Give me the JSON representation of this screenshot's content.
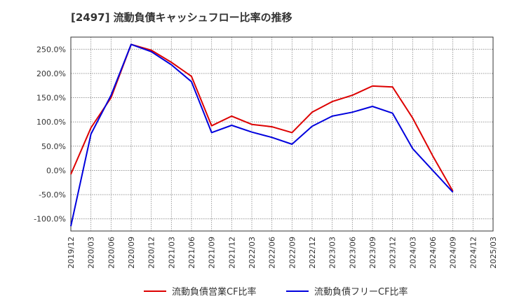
{
  "chart_data": {
    "type": "line",
    "title": "[2497]  流動負債キャッシュフロー比率の推移",
    "xlabel": "",
    "ylabel": "",
    "ylim": [
      -125,
      275
    ],
    "yticks": [
      -100,
      -50,
      0,
      50,
      100,
      150,
      200,
      250
    ],
    "ytick_labels": [
      "-100.0%",
      "-50.0%",
      "0.0%",
      "50.0%",
      "100.0%",
      "150.0%",
      "200.0%",
      "250.0%"
    ],
    "x": [
      "2019/12",
      "2020/03",
      "2020/06",
      "2020/09",
      "2020/12",
      "2021/03",
      "2021/06",
      "2021/09",
      "2021/12",
      "2022/03",
      "2022/06",
      "2022/09",
      "2022/12",
      "2023/03",
      "2023/06",
      "2023/09",
      "2023/12",
      "2024/03",
      "2024/06",
      "2024/09",
      "2024/12",
      "2025/03"
    ],
    "grid": true,
    "legend_position": "bottom",
    "series": [
      {
        "name": "流動負債営業CF比率",
        "color": "#dd0000",
        "values": [
          -8,
          88,
          150,
          260,
          248,
          223,
          194,
          92,
          112,
          95,
          90,
          78,
          120,
          142,
          155,
          174,
          172,
          108,
          30,
          -43,
          null,
          null
        ]
      },
      {
        "name": "流動負債フリーCF比率",
        "color": "#0000dd",
        "values": [
          -115,
          75,
          155,
          260,
          245,
          218,
          183,
          78,
          93,
          79,
          68,
          54,
          91,
          112,
          120,
          132,
          118,
          45,
          0,
          -45,
          null,
          null
        ]
      }
    ]
  }
}
